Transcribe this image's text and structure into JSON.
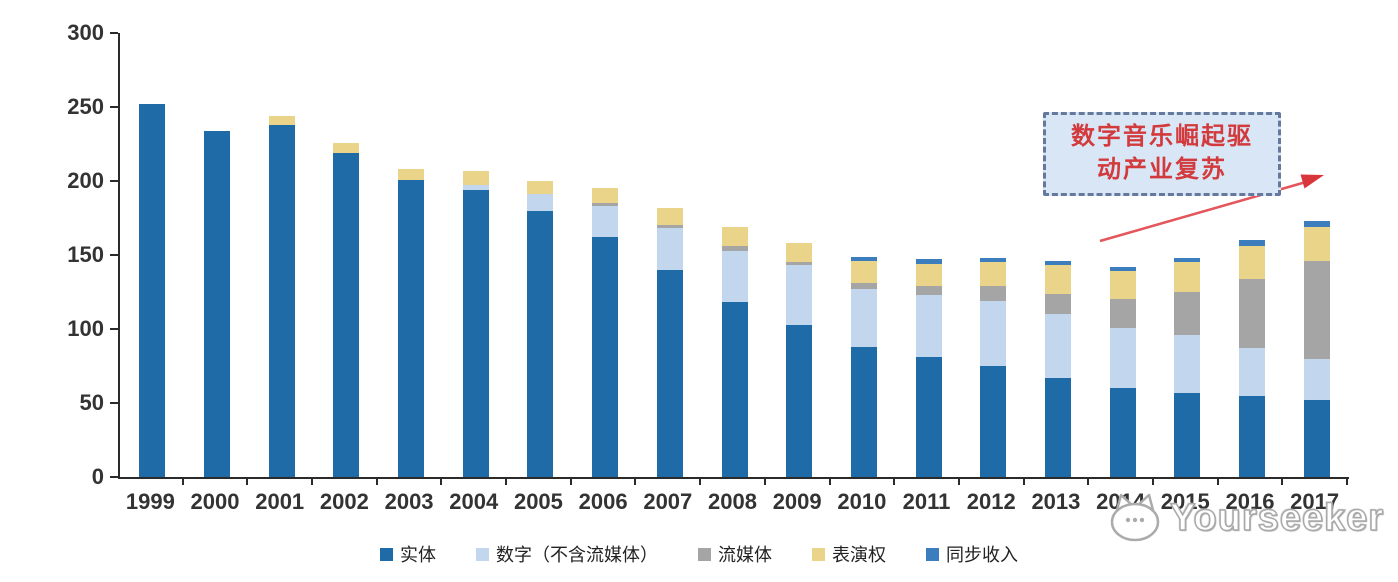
{
  "chart_data": {
    "type": "bar",
    "stacked": true,
    "categories": [
      "1999",
      "2000",
      "2001",
      "2002",
      "2003",
      "2004",
      "2005",
      "2006",
      "2007",
      "2008",
      "2009",
      "2010",
      "2011",
      "2012",
      "2013",
      "2014",
      "2015",
      "2016",
      "2017"
    ],
    "series": [
      {
        "name": "实体",
        "color": "#1F6BA8",
        "values": [
          252,
          234,
          238,
          219,
          201,
          194,
          180,
          162,
          140,
          118,
          103,
          88,
          81,
          75,
          67,
          60,
          57,
          55,
          52
        ]
      },
      {
        "name": "数字（不含流媒体）",
        "color": "#C2D7EE",
        "values": [
          0,
          0,
          0,
          0,
          0,
          3,
          11,
          21,
          28,
          35,
          40,
          39,
          42,
          44,
          43,
          41,
          39,
          32,
          28
        ]
      },
      {
        "name": "流媒体",
        "color": "#A5A5A5",
        "values": [
          0,
          0,
          0,
          0,
          0,
          0,
          0,
          2,
          2,
          3,
          2,
          4,
          6,
          10,
          14,
          19,
          29,
          47,
          66
        ]
      },
      {
        "name": "表演权",
        "color": "#E9D489",
        "values": [
          0,
          0,
          6,
          7,
          7,
          10,
          9,
          10,
          12,
          13,
          13,
          15,
          15,
          16,
          19,
          19,
          20,
          22,
          23
        ]
      },
      {
        "name": "同步收入",
        "color": "#3C7DBE",
        "values": [
          0,
          0,
          0,
          0,
          0,
          0,
          0,
          0,
          0,
          0,
          0,
          3,
          3,
          3,
          3,
          3,
          3,
          4,
          4
        ]
      }
    ],
    "totals": [
      252,
      234,
      244,
      226,
      208,
      207,
      200,
      195,
      182,
      169,
      158,
      149,
      147,
      148,
      146,
      142,
      148,
      160,
      173
    ],
    "ylim": [
      0,
      300
    ],
    "ytick_step": 50,
    "yticks": [
      "0",
      "50",
      "100",
      "150",
      "200",
      "250",
      "300"
    ],
    "xlabel": "",
    "ylabel": "",
    "title": "",
    "grid": false,
    "legend_position": "bottom"
  },
  "annotation": {
    "line1": "数字音乐崛起驱",
    "line2": "动产业复苏",
    "text_color": "#D23A3C",
    "box_fill": "#D9E6F6",
    "border_color": "#64799B",
    "arrow_color": "#E4555C"
  },
  "watermark": {
    "text": "Yourseeker",
    "logo": "cat-logo-icon"
  }
}
